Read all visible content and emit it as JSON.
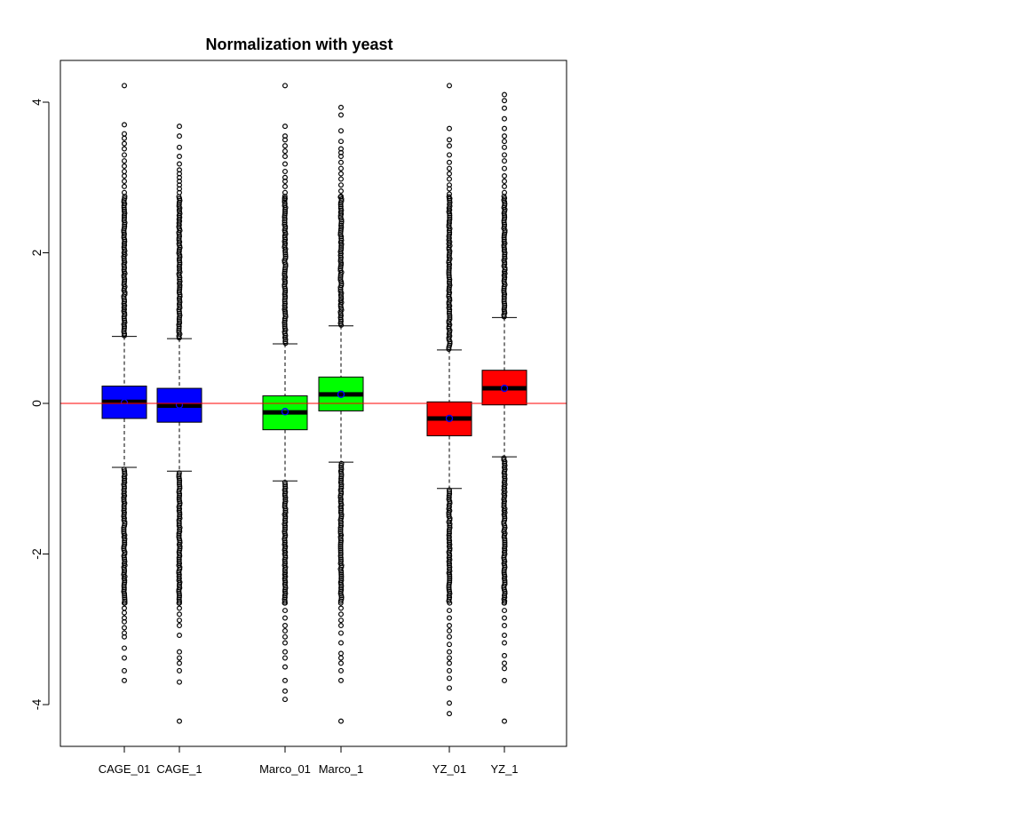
{
  "chart_data": {
    "type": "boxplot",
    "title": "Normalization with yeast",
    "xlabel": "",
    "ylabel": "",
    "ylim": [
      -4.55,
      4.55
    ],
    "yticks": [
      -4,
      -2,
      0,
      2,
      4
    ],
    "ytick_labels": [
      "-4",
      "-2",
      "0",
      "2",
      "4"
    ],
    "reference_line": {
      "y": 0,
      "color": "#ff0000"
    },
    "colors": {
      "blue": "#0000ff",
      "green": "#00ff00",
      "red": "#ff0000",
      "mean_marker": "#0000ff"
    },
    "categories": [
      "CAGE_01",
      "CAGE_1",
      "Marco_01",
      "Marco_1",
      "YZ_01",
      "YZ_1"
    ],
    "boxes": [
      {
        "label": "CAGE_01",
        "group": 1,
        "color": "#0000ff",
        "whisker_low": -0.85,
        "q1": -0.2,
        "median": 0.02,
        "q3": 0.23,
        "whisker_high": 0.89,
        "mean": 0.01,
        "outliers_high_max": 4.22,
        "outliers_low_min": -3.68,
        "outliers_high_sparse": [
          3.7,
          3.58,
          3.52,
          3.45,
          3.38,
          3.3,
          3.22,
          3.15,
          3.08,
          3.02,
          2.95,
          2.88,
          2.8
        ],
        "outliers_low_sparse": [
          -3.55,
          -3.38,
          -3.25,
          -3.1,
          -3.05,
          -2.98,
          -2.9,
          -2.85,
          -2.78,
          -2.72,
          -2.65
        ]
      },
      {
        "label": "CAGE_1",
        "group": 1,
        "color": "#0000ff",
        "whisker_low": -0.9,
        "q1": -0.25,
        "median": -0.03,
        "q3": 0.2,
        "whisker_high": 0.86,
        "mean": -0.02,
        "outliers_high_max": 3.68,
        "outliers_low_min": -4.22,
        "outliers_high_sparse": [
          3.55,
          3.4,
          3.28,
          3.18,
          3.1,
          3.05,
          3.0,
          2.95,
          2.9,
          2.85,
          2.8,
          2.72
        ],
        "outliers_low_sparse": [
          -3.7,
          -3.55,
          -3.45,
          -3.38,
          -3.3,
          -3.08,
          -2.95,
          -2.88,
          -2.8,
          -2.72,
          -2.65
        ]
      },
      {
        "label": "Marco_01",
        "group": 2,
        "color": "#00ff00",
        "whisker_low": -1.03,
        "q1": -0.35,
        "median": -0.12,
        "q3": 0.1,
        "whisker_high": 0.79,
        "mean": -0.11,
        "outliers_high_max": 4.22,
        "outliers_low_min": -3.93,
        "outliers_high_sparse": [
          3.68,
          3.55,
          3.5,
          3.42,
          3.35,
          3.28,
          3.18,
          3.08,
          3.0,
          2.95,
          2.88,
          2.8,
          2.72
        ],
        "outliers_low_sparse": [
          -3.82,
          -3.68,
          -3.5,
          -3.38,
          -3.3,
          -3.18,
          -3.1,
          -3.02,
          -2.95,
          -2.85,
          -2.75,
          -2.65
        ]
      },
      {
        "label": "Marco_1",
        "group": 2,
        "color": "#00ff00",
        "whisker_low": -0.78,
        "q1": -0.1,
        "median": 0.12,
        "q3": 0.35,
        "whisker_high": 1.03,
        "mean": 0.12,
        "outliers_high_max": 3.93,
        "outliers_low_min": -4.22,
        "outliers_high_sparse": [
          3.83,
          3.62,
          3.48,
          3.38,
          3.33,
          3.28,
          3.2,
          3.12,
          3.05,
          2.98,
          2.9,
          2.82,
          2.75
        ],
        "outliers_low_sparse": [
          -3.68,
          -3.55,
          -3.45,
          -3.38,
          -3.32,
          -3.18,
          -3.05,
          -2.95,
          -2.88,
          -2.8,
          -2.72
        ]
      },
      {
        "label": "YZ_01",
        "group": 3,
        "color": "#ff0000",
        "whisker_low": -1.13,
        "q1": -0.43,
        "median": -0.2,
        "q3": 0.02,
        "whisker_high": 0.71,
        "mean": -0.2,
        "outliers_high_max": 4.22,
        "outliers_low_min": -4.12,
        "outliers_high_sparse": [
          3.65,
          3.5,
          3.42,
          3.3,
          3.2,
          3.12,
          3.05,
          2.98,
          2.9,
          2.85,
          2.78,
          2.72
        ],
        "outliers_low_sparse": [
          -3.98,
          -3.78,
          -3.65,
          -3.55,
          -3.45,
          -3.38,
          -3.3,
          -3.2,
          -3.1,
          -3.02,
          -2.95,
          -2.85,
          -2.75
        ]
      },
      {
        "label": "YZ_1",
        "group": 3,
        "color": "#ff0000",
        "whisker_low": -0.71,
        "q1": -0.02,
        "median": 0.2,
        "q3": 0.44,
        "whisker_high": 1.14,
        "mean": 0.2,
        "outliers_high_max": 4.1,
        "outliers_low_min": -4.22,
        "outliers_high_sparse": [
          4.02,
          3.92,
          3.78,
          3.65,
          3.55,
          3.48,
          3.4,
          3.3,
          3.22,
          3.12,
          3.02,
          2.95,
          2.88,
          2.8
        ],
        "outliers_low_sparse": [
          -3.68,
          -3.52,
          -3.45,
          -3.35,
          -3.18,
          -3.08,
          -2.95,
          -2.85,
          -2.75,
          -2.65
        ]
      }
    ]
  }
}
